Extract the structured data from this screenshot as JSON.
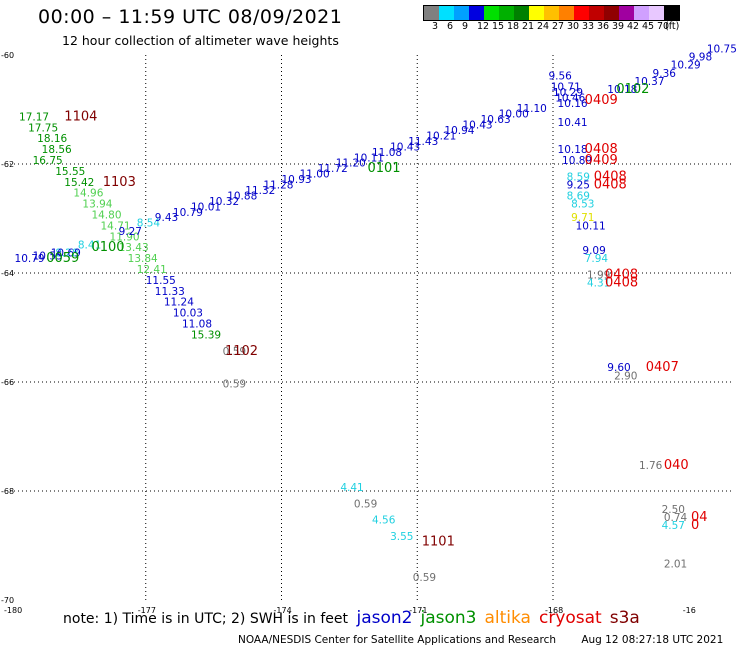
{
  "title": "00:00 – 11:59 UTC 08/09/2021",
  "subtitle": "12 hour collection of altimeter wave heights",
  "colorbar": {
    "colors": [
      "#808080",
      "#00e0ff",
      "#00a0ff",
      "#0000e0",
      "#00e000",
      "#00b000",
      "#008000",
      "#ffff00",
      "#ffc000",
      "#ff8000",
      "#ff0000",
      "#c00000",
      "#900000",
      "#a000a0",
      "#d0a0ff",
      "#e8c8ff",
      "#000000"
    ],
    "labels": [
      "3",
      "6",
      "9",
      "12",
      "15",
      "18",
      "21",
      "24",
      "27",
      "30",
      "33",
      "36",
      "39",
      "42",
      "45",
      "70",
      "(ft)"
    ]
  },
  "axes": {
    "x_ticks": [
      "-180",
      "-177",
      "-174",
      "-171",
      "-168",
      "-16"
    ],
    "y_ticks": [
      "-60",
      "-62",
      "-64",
      "-66",
      "-68",
      "-70"
    ]
  },
  "sat_colors": {
    "jason2": "#0000c8",
    "jason3": "#009000",
    "altika": "#ff8c00",
    "cryosat": "#e00000",
    "s3a": "#800000",
    "grey": "#707070",
    "cyan": "#20d0e0",
    "lgreen": "#50d050",
    "yellow": "#e0e000"
  },
  "observations": [
    {
      "t": "17.17",
      "c": "jason3",
      "lx": -179.8,
      "ly": -61.2
    },
    {
      "t": "17.75",
      "c": "jason3",
      "lx": -179.6,
      "ly": -61.4
    },
    {
      "t": "18.16",
      "c": "jason3",
      "lx": -179.4,
      "ly": -61.6
    },
    {
      "t": "18.56",
      "c": "jason3",
      "lx": -179.3,
      "ly": -61.8
    },
    {
      "t": "16.75",
      "c": "jason3",
      "lx": -179.5,
      "ly": -62.0
    },
    {
      "t": "15.55",
      "c": "jason3",
      "lx": -179.0,
      "ly": -62.2
    },
    {
      "t": "15.42",
      "c": "jason3",
      "lx": -178.8,
      "ly": -62.4
    },
    {
      "t": "14.96",
      "c": "lgreen",
      "lx": -178.6,
      "ly": -62.6
    },
    {
      "t": "13.94",
      "c": "lgreen",
      "lx": -178.4,
      "ly": -62.8
    },
    {
      "t": "14.80",
      "c": "lgreen",
      "lx": -178.2,
      "ly": -63.0
    },
    {
      "t": "14.71",
      "c": "lgreen",
      "lx": -178.0,
      "ly": -63.2
    },
    {
      "t": "11.90",
      "c": "lgreen",
      "lx": -177.8,
      "ly": -63.4
    },
    {
      "t": "13.43",
      "c": "lgreen",
      "lx": -177.6,
      "ly": -63.6
    },
    {
      "t": "13.84",
      "c": "lgreen",
      "lx": -177.4,
      "ly": -63.8
    },
    {
      "t": "12.41",
      "c": "lgreen",
      "lx": -177.2,
      "ly": -64.0
    },
    {
      "t": "11.55",
      "c": "jason2",
      "lx": -177.0,
      "ly": -64.2
    },
    {
      "t": "11.33",
      "c": "jason2",
      "lx": -176.8,
      "ly": -64.4
    },
    {
      "t": "11.24",
      "c": "jason2",
      "lx": -176.6,
      "ly": -64.6
    },
    {
      "t": "10.03",
      "c": "jason2",
      "lx": -176.4,
      "ly": -64.8
    },
    {
      "t": "11.08",
      "c": "jason2",
      "lx": -176.2,
      "ly": -65.0
    },
    {
      "t": "15.39",
      "c": "jason3",
      "lx": -176.0,
      "ly": -65.2
    },
    {
      "t": "0.59",
      "c": "grey",
      "lx": -175.3,
      "ly": -65.5
    },
    {
      "t": "0.59",
      "c": "grey",
      "lx": -175.3,
      "ly": -66.1
    },
    {
      "t": "8.28",
      "c": "cyan",
      "lx": -179.0,
      "ly": -63.7
    },
    {
      "t": "8.41",
      "c": "cyan",
      "lx": -178.5,
      "ly": -63.55
    },
    {
      "t": "9.27",
      "c": "jason2",
      "lx": -177.6,
      "ly": -63.3
    },
    {
      "t": "8.54",
      "c": "cyan",
      "lx": -177.2,
      "ly": -63.15
    },
    {
      "t": "9.43",
      "c": "jason2",
      "lx": -176.8,
      "ly": -63.05
    },
    {
      "t": "10.79",
      "c": "jason2",
      "lx": -176.4,
      "ly": -62.95
    },
    {
      "t": "10.01",
      "c": "jason2",
      "lx": -176.0,
      "ly": -62.85
    },
    {
      "t": "10.32",
      "c": "jason2",
      "lx": -175.6,
      "ly": -62.75
    },
    {
      "t": "10.88",
      "c": "jason2",
      "lx": -175.2,
      "ly": -62.65
    },
    {
      "t": "11.32",
      "c": "jason2",
      "lx": -174.8,
      "ly": -62.55
    },
    {
      "t": "11.28",
      "c": "jason2",
      "lx": -174.4,
      "ly": -62.45
    },
    {
      "t": "10.93",
      "c": "jason2",
      "lx": -174.0,
      "ly": -62.35
    },
    {
      "t": "11.00",
      "c": "jason2",
      "lx": -173.6,
      "ly": -62.25
    },
    {
      "t": "11.72",
      "c": "jason2",
      "lx": -173.2,
      "ly": -62.15
    },
    {
      "t": "11.20",
      "c": "jason2",
      "lx": -172.8,
      "ly": -62.05
    },
    {
      "t": "10.11",
      "c": "jason2",
      "lx": -172.4,
      "ly": -61.95
    },
    {
      "t": "11.08",
      "c": "jason2",
      "lx": -172.0,
      "ly": -61.85
    },
    {
      "t": "10.43",
      "c": "jason2",
      "lx": -171.6,
      "ly": -61.75
    },
    {
      "t": "11.43",
      "c": "jason2",
      "lx": -171.2,
      "ly": -61.65
    },
    {
      "t": "10.21",
      "c": "jason2",
      "lx": -170.8,
      "ly": -61.55
    },
    {
      "t": "10.94",
      "c": "jason2",
      "lx": -170.4,
      "ly": -61.45
    },
    {
      "t": "10.43",
      "c": "jason2",
      "lx": -170.0,
      "ly": -61.35
    },
    {
      "t": "10.63",
      "c": "jason2",
      "lx": -169.6,
      "ly": -61.25
    },
    {
      "t": "10.00",
      "c": "jason2",
      "lx": -169.2,
      "ly": -61.15
    },
    {
      "t": "11.10",
      "c": "jason2",
      "lx": -168.8,
      "ly": -61.05
    },
    {
      "t": "9.56",
      "c": "jason2",
      "lx": -168.1,
      "ly": -60.45
    },
    {
      "t": "10.71",
      "c": "jason2",
      "lx": -168.05,
      "ly": -60.65
    },
    {
      "t": "10.29",
      "c": "jason2",
      "lx": -168.0,
      "ly": -60.75
    },
    {
      "t": "10.46",
      "c": "jason2",
      "lx": -167.95,
      "ly": -60.85
    },
    {
      "t": "10.16",
      "c": "jason2",
      "lx": -167.9,
      "ly": -60.95
    },
    {
      "t": "10.18",
      "c": "jason2",
      "lx": -166.8,
      "ly": -60.7
    },
    {
      "t": "10.37",
      "c": "jason2",
      "lx": -166.2,
      "ly": -60.55
    },
    {
      "t": "9.36",
      "c": "jason2",
      "lx": -165.8,
      "ly": -60.4
    },
    {
      "t": "10.29",
      "c": "jason2",
      "lx": -165.4,
      "ly": -60.25
    },
    {
      "t": "9.98",
      "c": "jason2",
      "lx": -165.0,
      "ly": -60.1
    },
    {
      "t": "10.75",
      "c": "jason2",
      "lx": -164.6,
      "ly": -59.95
    },
    {
      "t": "10.41",
      "c": "jason2",
      "lx": -167.9,
      "ly": -61.3
    },
    {
      "t": "10.18",
      "c": "jason2",
      "lx": -167.9,
      "ly": -61.8
    },
    {
      "t": "10.89",
      "c": "jason2",
      "lx": -167.8,
      "ly": -62.0
    },
    {
      "t": "8.59",
      "c": "cyan",
      "lx": -167.7,
      "ly": -62.3
    },
    {
      "t": "9.25",
      "c": "jason2",
      "lx": -167.7,
      "ly": -62.45
    },
    {
      "t": "8.69",
      "c": "cyan",
      "lx": -167.7,
      "ly": -62.65
    },
    {
      "t": "8.53",
      "c": "cyan",
      "lx": -167.6,
      "ly": -62.8
    },
    {
      "t": "9.71",
      "c": "yellow",
      "lx": -167.6,
      "ly": -63.05
    },
    {
      "t": "10.11",
      "c": "jason2",
      "lx": -167.5,
      "ly": -63.2
    },
    {
      "t": "9.09",
      "c": "jason2",
      "lx": -167.35,
      "ly": -63.65
    },
    {
      "t": "7.94",
      "c": "cyan",
      "lx": -167.3,
      "ly": -63.8
    },
    {
      "t": "1.99",
      "c": "grey",
      "lx": -167.25,
      "ly": -64.1
    },
    {
      "t": "4.31",
      "c": "cyan",
      "lx": -167.25,
      "ly": -64.25
    },
    {
      "t": "9.60",
      "c": "jason2",
      "lx": -166.8,
      "ly": -65.8
    },
    {
      "t": "2.90",
      "c": "grey",
      "lx": -166.65,
      "ly": -65.95
    },
    {
      "t": "1.76",
      "c": "grey",
      "lx": -166.1,
      "ly": -67.6
    },
    {
      "t": "2.50",
      "c": "grey",
      "lx": -165.6,
      "ly": -68.4
    },
    {
      "t": "0.74",
      "c": "grey",
      "lx": -165.55,
      "ly": -68.55
    },
    {
      "t": "4.57",
      "c": "cyan",
      "lx": -165.6,
      "ly": -68.7
    },
    {
      "t": "2.01",
      "c": "grey",
      "lx": -165.55,
      "ly": -69.4
    },
    {
      "t": "4.41",
      "c": "cyan",
      "lx": -172.7,
      "ly": -68.0
    },
    {
      "t": "0.59",
      "c": "grey",
      "lx": -172.4,
      "ly": -68.3
    },
    {
      "t": "4.56",
      "c": "cyan",
      "lx": -172.0,
      "ly": -68.6
    },
    {
      "t": "3.55",
      "c": "cyan",
      "lx": -171.6,
      "ly": -68.9
    },
    {
      "t": "0.59",
      "c": "grey",
      "lx": -171.1,
      "ly": -69.65
    },
    {
      "t": "10.79",
      "c": "jason2",
      "lx": -179.9,
      "ly": -63.8
    },
    {
      "t": "10.55",
      "c": "jason2",
      "lx": -179.5,
      "ly": -63.75
    },
    {
      "t": "10.69",
      "c": "jason2",
      "lx": -179.1,
      "ly": -63.7
    }
  ],
  "time_labels": [
    {
      "t": "1104",
      "c": "s3a",
      "lx": -178.8,
      "ly": -61.2
    },
    {
      "t": "1103",
      "c": "s3a",
      "lx": -177.95,
      "ly": -62.4
    },
    {
      "t": "0100",
      "c": "jason3",
      "lx": -178.2,
      "ly": -63.6
    },
    {
      "t": "0059",
      "c": "jason3",
      "lx": -179.2,
      "ly": -63.8
    },
    {
      "t": "1102",
      "c": "s3a",
      "lx": -175.25,
      "ly": -65.5
    },
    {
      "t": "0101",
      "c": "jason3",
      "lx": -172.1,
      "ly": -62.15
    },
    {
      "t": "0102",
      "c": "jason3",
      "lx": -166.6,
      "ly": -60.7
    },
    {
      "t": "0409",
      "c": "cryosat",
      "lx": -167.3,
      "ly": -60.9
    },
    {
      "t": "0408",
      "c": "cryosat",
      "lx": -167.3,
      "ly": -61.8
    },
    {
      "t": "0409",
      "c": "cryosat",
      "lx": -167.3,
      "ly": -62.0
    },
    {
      "t": "0408",
      "c": "cryosat",
      "lx": -167.1,
      "ly": -62.3
    },
    {
      "t": "0408",
      "c": "cryosat",
      "lx": -167.1,
      "ly": -62.45
    },
    {
      "t": "0408",
      "c": "cryosat",
      "lx": -166.85,
      "ly": -64.1
    },
    {
      "t": "0408",
      "c": "cryosat",
      "lx": -166.85,
      "ly": -64.25
    },
    {
      "t": "0407",
      "c": "cryosat",
      "lx": -165.95,
      "ly": -65.8
    },
    {
      "t": "040",
      "c": "cryosat",
      "lx": -165.55,
      "ly": -67.6
    },
    {
      "t": "04",
      "c": "cryosat",
      "lx": -164.95,
      "ly": -68.55
    },
    {
      "t": "0",
      "c": "cryosat",
      "lx": -164.95,
      "ly": -68.7
    },
    {
      "t": "1101",
      "c": "s3a",
      "lx": -170.9,
      "ly": -69.0
    }
  ],
  "legend": {
    "note": "note:  1) Time is in UTC;  2) SWH is in feet",
    "satellites": [
      {
        "name": "jason2",
        "c": "jason2"
      },
      {
        "name": "jason3",
        "c": "jason3"
      },
      {
        "name": "altika",
        "c": "altika"
      },
      {
        "name": "cryosat",
        "c": "cryosat"
      },
      {
        "name": "s3a",
        "c": "s3a"
      }
    ]
  },
  "footer": {
    "org": "NOAA/NESDIS Center for Satellite Applications and Research",
    "timestamp": "Aug 12 08:27:18 UTC 2021"
  }
}
